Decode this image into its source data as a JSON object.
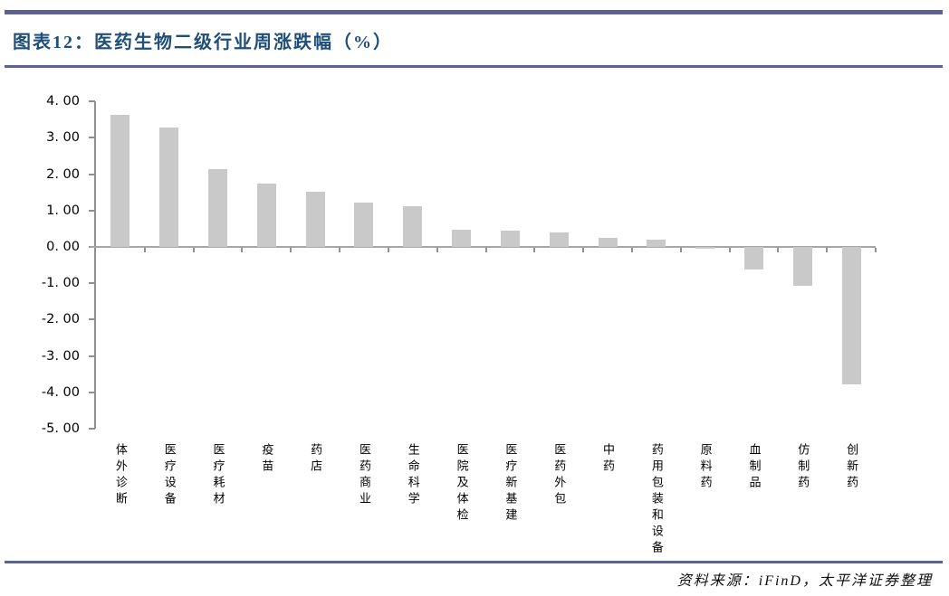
{
  "header": {
    "title": "图表12：医药生物二级行业周涨跌幅（%）"
  },
  "footer": {
    "source": "资料来源：iFinD，太平洋证券整理"
  },
  "colors": {
    "accent_rule": "#5d6198",
    "title_text": "#1f4e79",
    "bar_fill": "#c9c9c9",
    "axis_line": "#8f8f8f"
  },
  "chart_data": {
    "type": "bar",
    "title": "医药生物二级行业周涨跌幅（%）",
    "categories": [
      "体外诊断",
      "医疗设备",
      "医疗耗材",
      "疫苗",
      "药店",
      "医药商业",
      "生命科学",
      "医院及体检",
      "医疗新基建",
      "医药外包",
      "中药",
      "药用包装和设备",
      "原料药",
      "血制品",
      "仿制药",
      "创新药"
    ],
    "values": [
      3.63,
      3.29,
      2.14,
      1.74,
      1.51,
      1.22,
      1.12,
      0.47,
      0.46,
      0.41,
      0.25,
      0.2,
      -0.06,
      -0.62,
      -1.06,
      -3.78
    ],
    "xlabel": "",
    "ylabel": "",
    "ylim": [
      -5,
      4
    ],
    "ytick_step": 1,
    "ytick_labels": [
      "4. 00",
      "3. 00",
      "2. 00",
      "1. 00",
      "0. 00",
      "-1. 00",
      "-2. 00",
      "-3. 00",
      "-4. 00",
      "-5. 00"
    ],
    "grid": false,
    "legend": "none",
    "bar_color": "#c9c9c9"
  }
}
